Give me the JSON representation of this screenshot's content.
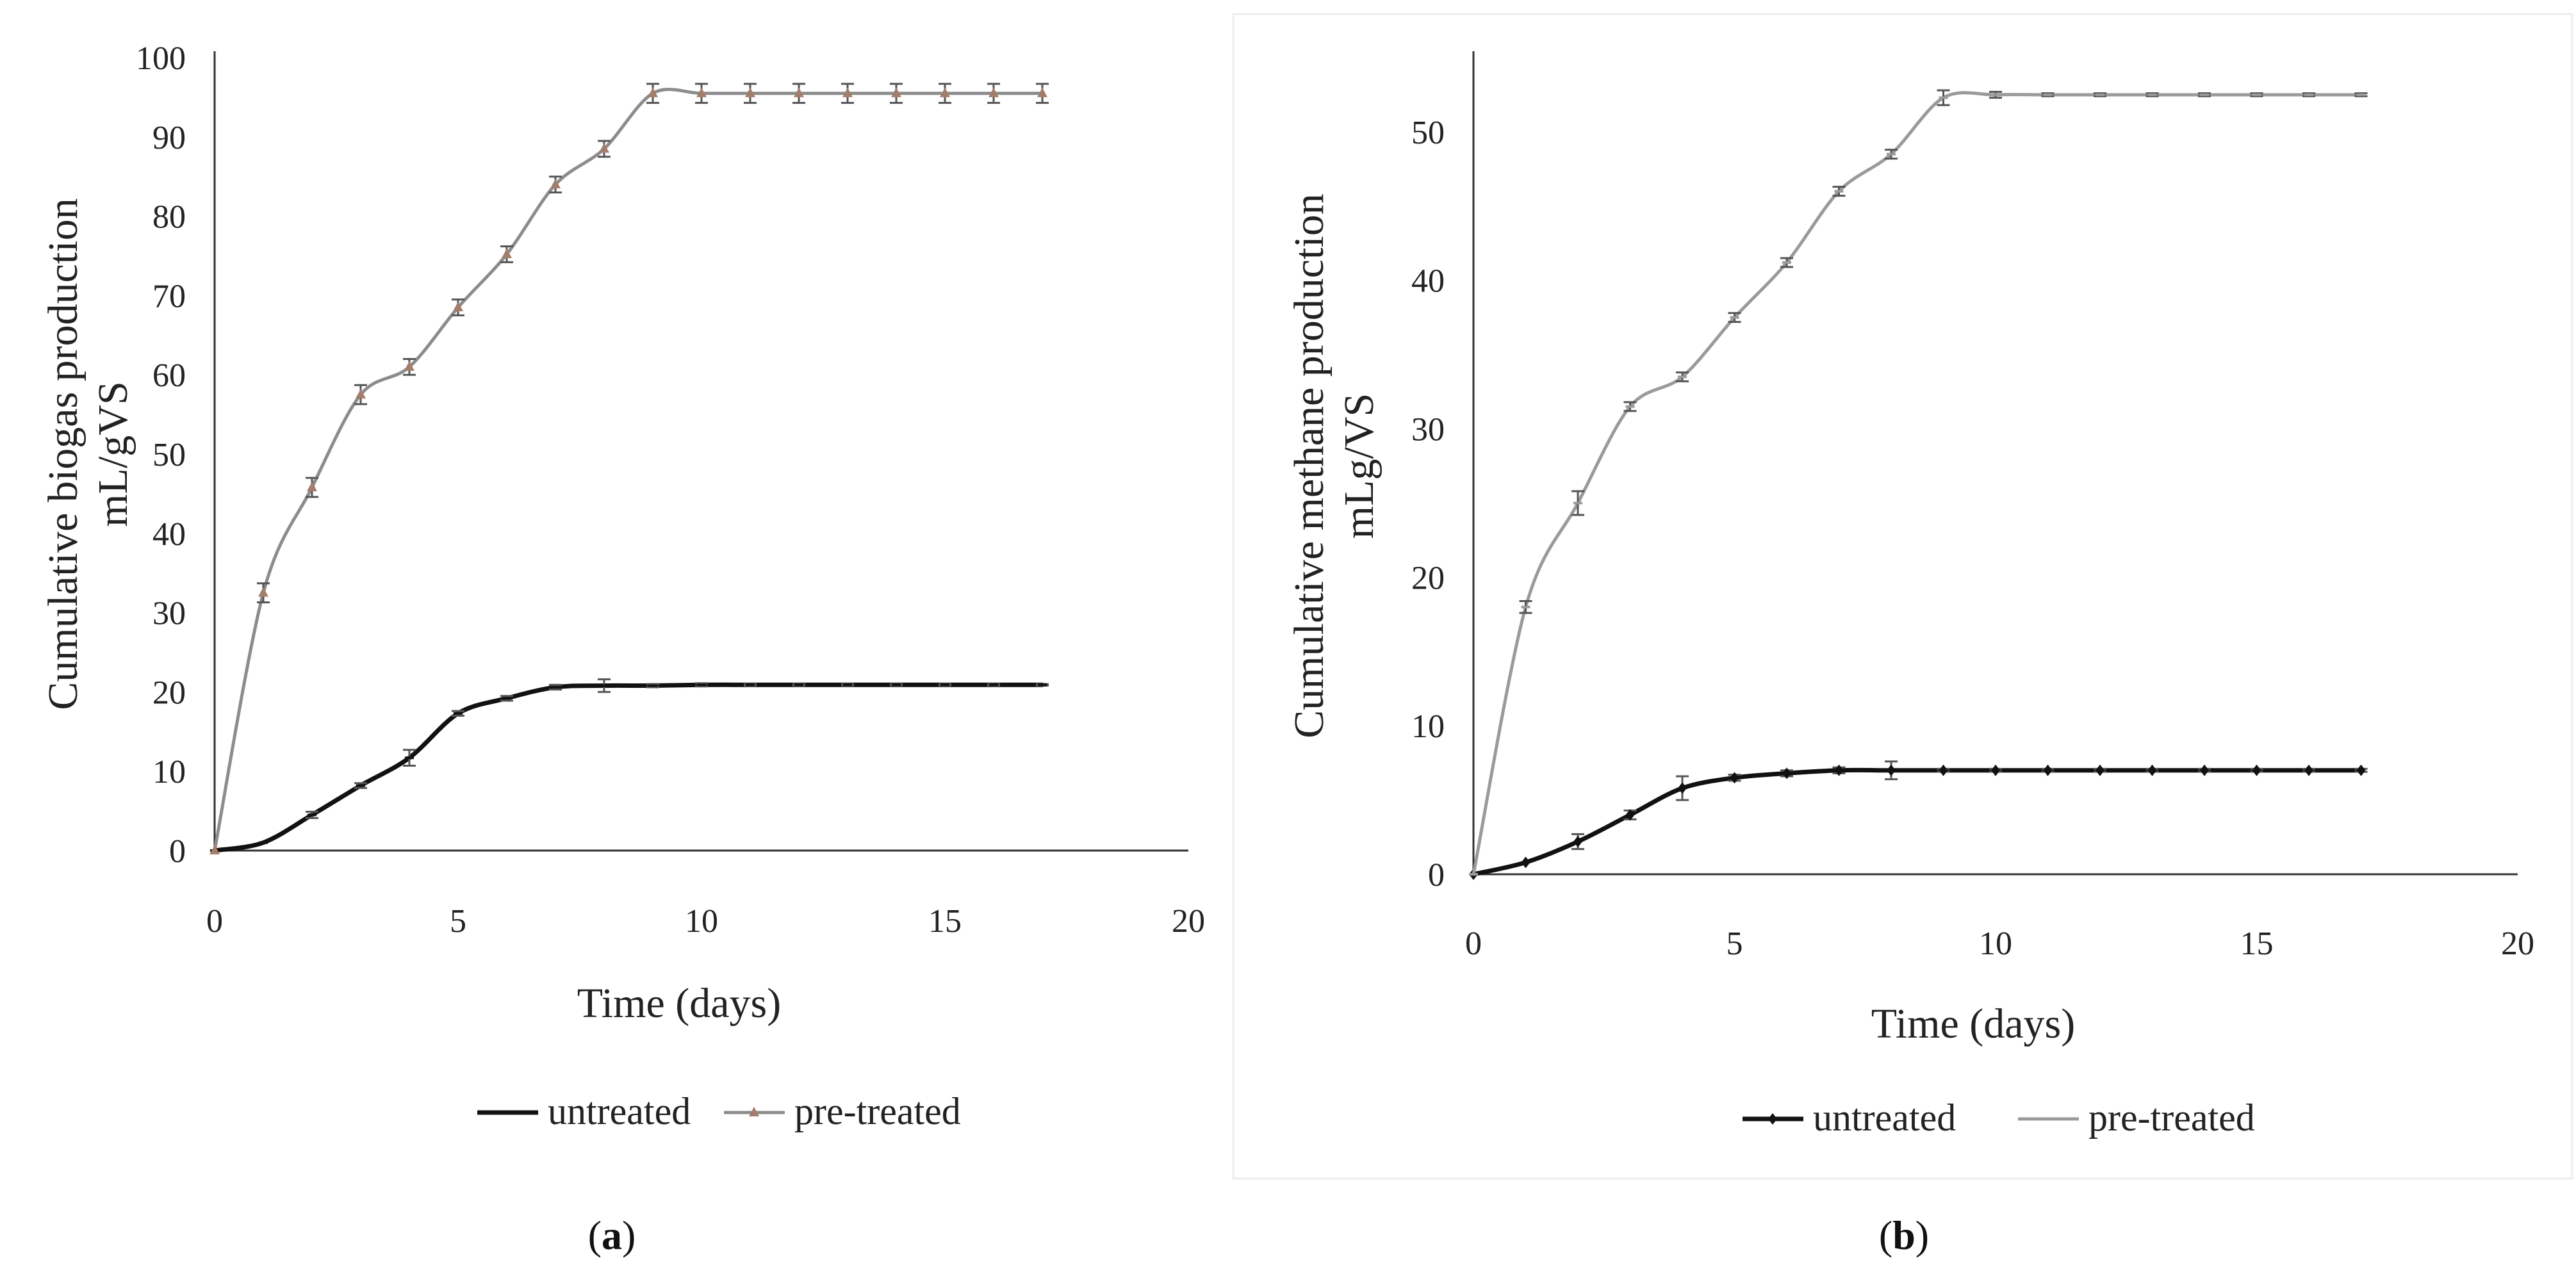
{
  "chart_data": [
    {
      "type": "line",
      "panel_label": {
        "open": "(",
        "letter": "a",
        "close": ")"
      },
      "title": "",
      "xlabel": "Time (days)",
      "ylabel": [
        "Cumulative biogas production",
        "mL/gVS"
      ],
      "xlim": [
        0,
        20
      ],
      "ylim": [
        0,
        100
      ],
      "xticks": [
        "0",
        "5",
        "10",
        "15",
        "20"
      ],
      "yticks": [
        "0",
        "10",
        "20",
        "30",
        "40",
        "50",
        "60",
        "70",
        "80",
        "90",
        "100"
      ],
      "grid": false,
      "legend_position": "bottom",
      "series": [
        {
          "name": "untreated",
          "color": "#111111",
          "marker": "dash",
          "x": [
            0,
            1,
            2,
            3,
            4,
            5,
            6,
            7,
            8,
            9,
            10,
            11,
            12,
            13,
            14,
            15,
            16,
            17
          ],
          "values": [
            0,
            1,
            4.5,
            8.2,
            11.7,
            17.3,
            19.2,
            20.6,
            20.8,
            20.8,
            20.9,
            20.9,
            20.9,
            20.9,
            20.9,
            20.9,
            20.9,
            20.9
          ],
          "error": [
            0,
            0,
            0.4,
            0.3,
            1.0,
            0.3,
            0.3,
            0.3,
            0.8,
            0.2,
            0.2,
            0.1,
            0.1,
            0.1,
            0.1,
            0.1,
            0.1,
            0.1
          ]
        },
        {
          "name": "pre-treated",
          "color": "#8c8c8c",
          "marker": "triangle",
          "marker_color": "#a37e6c",
          "x": [
            0,
            1,
            2,
            3,
            4,
            5,
            6,
            7,
            8,
            9,
            10,
            11,
            12,
            13,
            14,
            15,
            16,
            17
          ],
          "values": [
            0,
            32.5,
            45.8,
            57.5,
            61,
            68.5,
            75.2,
            84,
            88.5,
            95.5,
            95.5,
            95.5,
            95.5,
            95.5,
            95.5,
            95.5,
            95.5,
            95.5
          ],
          "error": [
            0,
            1.2,
            1.2,
            1.2,
            1.0,
            1.0,
            1.0,
            1.0,
            1.0,
            1.2,
            1.2,
            1.2,
            1.2,
            1.2,
            1.2,
            1.2,
            1.2,
            1.2
          ]
        }
      ]
    },
    {
      "type": "line",
      "panel_label": {
        "open": "(",
        "letter": "b",
        "close": ")"
      },
      "title": "",
      "xlabel": "Time (days)",
      "ylabel": [
        "Cumulative methane production",
        "mLg/VS"
      ],
      "xlim": [
        0,
        20
      ],
      "ylim": [
        0,
        55
      ],
      "xticks": [
        "0",
        "5",
        "10",
        "15",
        "20"
      ],
      "yticks": [
        "0",
        "10",
        "20",
        "30",
        "40",
        "50"
      ],
      "grid": false,
      "legend_position": "bottom",
      "series": [
        {
          "name": "untreated",
          "color": "#111111",
          "marker": "diamond",
          "x": [
            0,
            1,
            2,
            3,
            4,
            5,
            6,
            7,
            8,
            9,
            10,
            11,
            12,
            13,
            14,
            15,
            16,
            17
          ],
          "values": [
            0,
            0.8,
            2.2,
            4.0,
            5.8,
            6.5,
            6.8,
            7.0,
            7.0,
            7.0,
            7.0,
            7.0,
            7.0,
            7.0,
            7.0,
            7.0,
            7.0,
            7.0
          ],
          "error": [
            0,
            0,
            0.5,
            0.3,
            0.8,
            0.2,
            0.2,
            0.2,
            0.6,
            0.1,
            0.1,
            0.1,
            0.1,
            0.1,
            0.1,
            0.1,
            0.1,
            0.1
          ]
        },
        {
          "name": "pre-treated",
          "color": "#9a9a9a",
          "marker": "dash",
          "x": [
            0,
            1,
            2,
            3,
            4,
            5,
            6,
            7,
            8,
            9,
            10,
            11,
            12,
            13,
            14,
            15,
            16,
            17
          ],
          "values": [
            0,
            18,
            25,
            31.5,
            33.5,
            37.5,
            41.2,
            46,
            48.5,
            52.3,
            52.5,
            52.5,
            52.5,
            52.5,
            52.5,
            52.5,
            52.5,
            52.5
          ],
          "error": [
            0,
            0.4,
            0.8,
            0.3,
            0.3,
            0.3,
            0.3,
            0.3,
            0.3,
            0.5,
            0.2,
            0.1,
            0.1,
            0.1,
            0.1,
            0.1,
            0.1,
            0.1
          ]
        }
      ]
    }
  ]
}
